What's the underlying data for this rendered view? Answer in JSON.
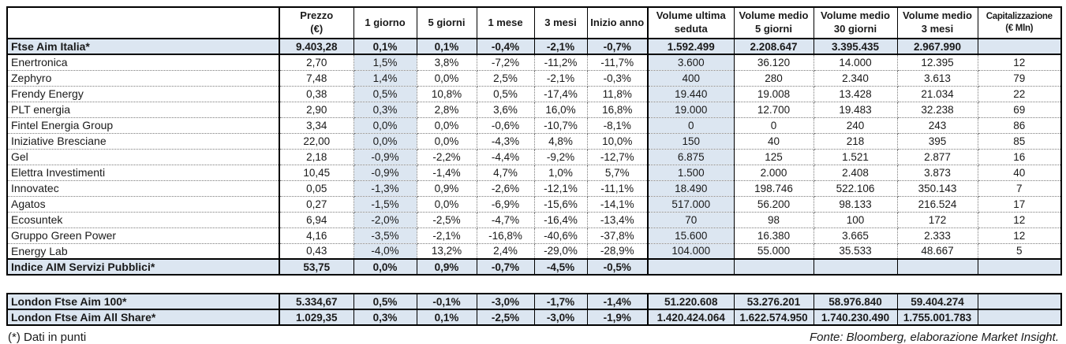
{
  "colors": {
    "row_highlight": "#dce6f1",
    "border": "#000000"
  },
  "table": {
    "columns": [
      "",
      "Prezzo\n(€)",
      "1 giorno",
      "5 giorni",
      "1 mese",
      "3 mesi",
      "Inizio anno",
      "Volume ultima\nseduta",
      "Volume medio\n5 giorni",
      "Volume medio\n30 giorni",
      "Volume medio\n3 mesi",
      "Capitalizzazione\n(€ Mln)"
    ],
    "rows": [
      {
        "name": "Ftse Aim Italia*",
        "type": "index",
        "values": [
          "9.403,28",
          "0,1%",
          "0,1%",
          "-0,4%",
          "-2,1%",
          "-0,7%",
          "1.592.499",
          "2.208.647",
          "3.395.435",
          "2.967.990",
          ""
        ]
      },
      {
        "name": "Enertronica",
        "type": "stock",
        "values": [
          "2,70",
          "1,5%",
          "3,8%",
          "-7,2%",
          "-11,2%",
          "-11,7%",
          "3.600",
          "36.120",
          "14.000",
          "12.395",
          "12"
        ]
      },
      {
        "name": "Zephyro",
        "type": "stock",
        "values": [
          "7,48",
          "1,4%",
          "0,0%",
          "2,5%",
          "-2,1%",
          "-0,3%",
          "400",
          "280",
          "2.340",
          "3.613",
          "79"
        ]
      },
      {
        "name": "Frendy Energy",
        "type": "stock",
        "values": [
          "0,38",
          "0,5%",
          "10,8%",
          "0,5%",
          "-17,4%",
          "11,8%",
          "19.440",
          "19.008",
          "13.428",
          "21.034",
          "22"
        ]
      },
      {
        "name": "PLT energia",
        "type": "stock",
        "values": [
          "2,90",
          "0,3%",
          "2,8%",
          "3,6%",
          "16,0%",
          "16,8%",
          "19.000",
          "12.700",
          "19.483",
          "32.238",
          "69"
        ]
      },
      {
        "name": "Fintel Energia Group",
        "type": "stock",
        "values": [
          "3,34",
          "0,0%",
          "0,0%",
          "-0,6%",
          "-10,7%",
          "-8,1%",
          "0",
          "0",
          "240",
          "243",
          "86"
        ]
      },
      {
        "name": "Iniziative Bresciane",
        "type": "stock",
        "values": [
          "22,00",
          "0,0%",
          "0,0%",
          "-4,3%",
          "4,8%",
          "10,0%",
          "150",
          "40",
          "218",
          "395",
          "85"
        ]
      },
      {
        "name": "Gel",
        "type": "stock",
        "values": [
          "2,18",
          "-0,9%",
          "-2,2%",
          "-4,4%",
          "-9,2%",
          "-12,7%",
          "6.875",
          "125",
          "1.521",
          "2.877",
          "16"
        ]
      },
      {
        "name": "Elettra Investimenti",
        "type": "stock",
        "values": [
          "10,45",
          "-0,9%",
          "-1,4%",
          "4,7%",
          "1,0%",
          "5,7%",
          "1.500",
          "2.000",
          "2.408",
          "3.873",
          "40"
        ]
      },
      {
        "name": "Innovatec",
        "type": "stock",
        "values": [
          "0,05",
          "-1,3%",
          "0,9%",
          "-2,6%",
          "-12,1%",
          "-11,1%",
          "18.490",
          "198.746",
          "522.106",
          "350.143",
          "7"
        ]
      },
      {
        "name": "Agatos",
        "type": "stock",
        "values": [
          "0,27",
          "-1,5%",
          "0,0%",
          "-6,9%",
          "-15,6%",
          "-14,1%",
          "517.000",
          "56.200",
          "98.133",
          "216.524",
          "17"
        ]
      },
      {
        "name": "Ecosuntek",
        "type": "stock",
        "values": [
          "6,94",
          "-2,0%",
          "-2,5%",
          "-4,7%",
          "-16,4%",
          "-13,4%",
          "70",
          "98",
          "100",
          "172",
          "12"
        ]
      },
      {
        "name": "Gruppo Green Power",
        "type": "stock",
        "values": [
          "4,16",
          "-3,5%",
          "-2,1%",
          "-16,8%",
          "-40,6%",
          "-37,8%",
          "15.600",
          "16.380",
          "3.665",
          "2.333",
          "12"
        ]
      },
      {
        "name": "Energy Lab",
        "type": "stock",
        "values": [
          "0,43",
          "-4,0%",
          "13,2%",
          "2,4%",
          "-29,0%",
          "-28,9%",
          "104.000",
          "55.000",
          "35.533",
          "48.667",
          "5"
        ]
      },
      {
        "name": "Indice AIM Servizi Pubblici*",
        "type": "index",
        "values": [
          "53,75",
          "0,0%",
          "0,9%",
          "-0,7%",
          "-4,5%",
          "-0,5%",
          "",
          "",
          "",
          "",
          ""
        ]
      }
    ]
  },
  "bottom_table": {
    "rows": [
      {
        "name": "London Ftse Aim 100*",
        "type": "index",
        "values": [
          "5.334,67",
          "0,5%",
          "-0,1%",
          "-3,0%",
          "-1,7%",
          "-1,4%",
          "51.220.608",
          "53.276.201",
          "58.976.840",
          "59.404.274",
          ""
        ]
      },
      {
        "name": "London Ftse Aim All Share*",
        "type": "index",
        "values": [
          "1.029,35",
          "0,3%",
          "0,1%",
          "-2,5%",
          "-3,0%",
          "-1,9%",
          "1.420.424.064",
          "1.622.574.950",
          "1.740.230.490",
          "1.755.001.783",
          ""
        ]
      }
    ]
  },
  "footer": {
    "note": "(*) Dati in punti",
    "source": "Fonte: Bloomberg, elaborazione Market Insight."
  }
}
